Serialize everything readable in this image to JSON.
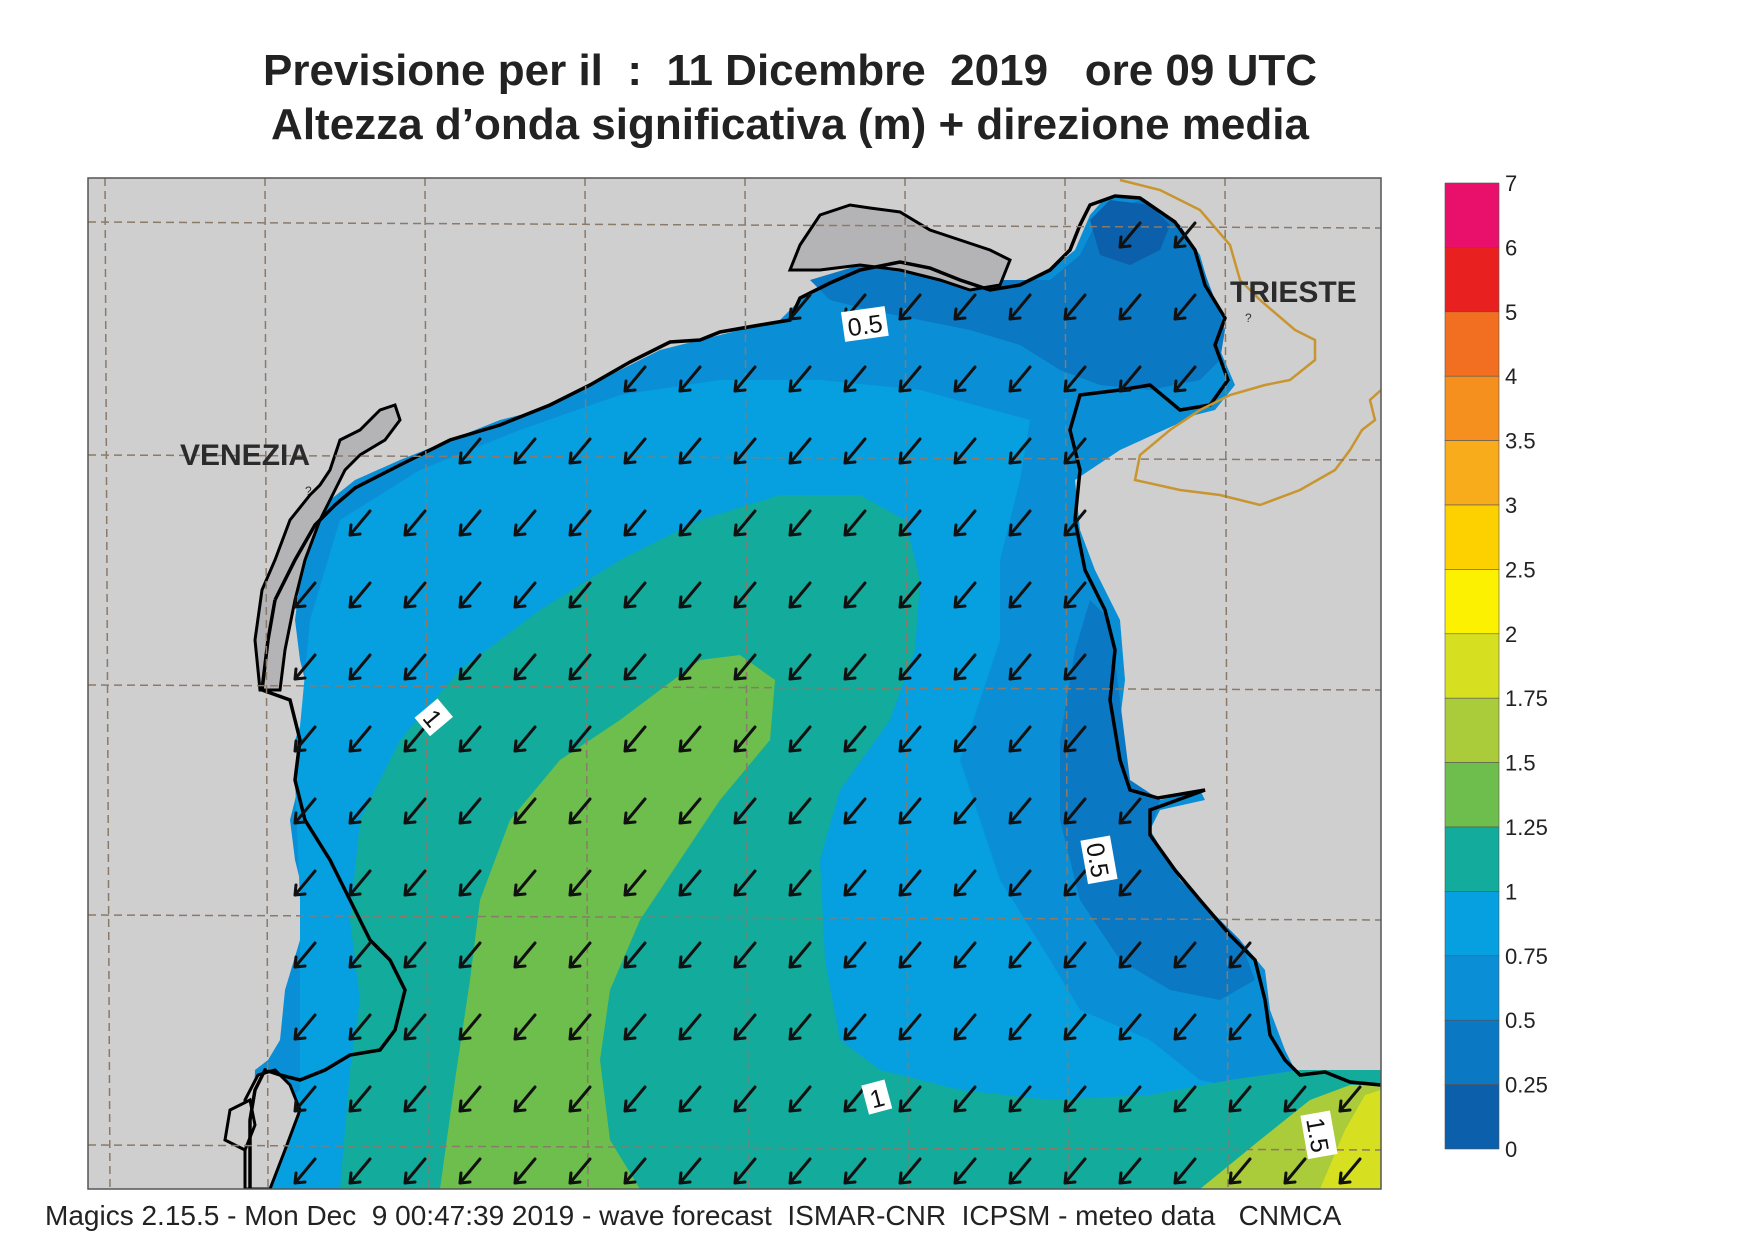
{
  "header": {
    "title_line1": "Previsione per il  :  11 Dicembre  2019   ore 09 UTC",
    "title_line2": "Altezza d’onda significativa (m) + direzione media"
  },
  "map": {
    "places": [
      {
        "name": "VENEZIA"
      },
      {
        "name": "TRIESTE"
      }
    ],
    "contour_labels": [
      "0.5",
      "1",
      "0.5",
      "1",
      "1.5"
    ],
    "arrow_direction": "south-west",
    "colors": {
      "land": "#cfcfd0",
      "coastline": "#000000",
      "border": "#c8952e",
      "grid": "#8a7a6a"
    }
  },
  "legend": {
    "ticks": [
      "7",
      "6",
      "5",
      "4",
      "3.5",
      "3",
      "2.5",
      "2",
      "1.75",
      "1.5",
      "1.25",
      "1",
      "0.75",
      "0.5",
      "0.25",
      "0"
    ],
    "colors": [
      "#e8106a",
      "#e8201f",
      "#f26f21",
      "#f5901f",
      "#f8ab1b",
      "#fdd100",
      "#fcf100",
      "#d6e020",
      "#aacb3a",
      "#6dbe4c",
      "#12ab9c",
      "#06a0e0",
      "#0a8fd7",
      "#0b78c4",
      "#0b5fab"
    ]
  },
  "footer": {
    "text": "Magics 2.15.5 - Mon Dec  9 00:47:39 2019 - wave forecast  ISMAR-CNR  ICPSM - meteo data   CNMCA"
  }
}
